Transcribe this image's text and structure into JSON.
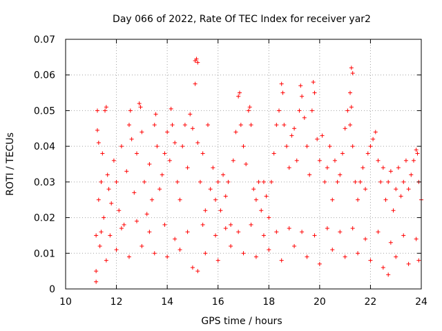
{
  "chart_data": {
    "type": "scatter",
    "title": "Day 066 of 2022, Rate Of TEC Index for receiver yar2",
    "xlabel": "GPS time / hours",
    "ylabel": "ROTI / TECUs",
    "xlim": [
      10,
      24
    ],
    "ylim": [
      0,
      0.07
    ],
    "grid": true,
    "marker": "plus",
    "series_color": "#ff0000",
    "x_ticks": [
      {
        "value": 10,
        "label": "10"
      },
      {
        "value": 12,
        "label": "12"
      },
      {
        "value": 14,
        "label": "14"
      },
      {
        "value": 16,
        "label": "16"
      },
      {
        "value": 18,
        "label": "18"
      },
      {
        "value": 20,
        "label": "20"
      },
      {
        "value": 22,
        "label": "22"
      },
      {
        "value": 24,
        "label": "24"
      }
    ],
    "y_ticks": [
      {
        "value": 0,
        "label": "0"
      },
      {
        "value": 0.01,
        "label": "0.01"
      },
      {
        "value": 0.02,
        "label": "0.02"
      },
      {
        "value": 0.03,
        "label": "0.03"
      },
      {
        "value": 0.04,
        "label": "0.04"
      },
      {
        "value": 0.05,
        "label": "0.05"
      },
      {
        "value": 0.06,
        "label": "0.06"
      },
      {
        "value": 0.07,
        "label": "0.07"
      }
    ],
    "points": [
      [
        11.2,
        0.002
      ],
      [
        11.2,
        0.005
      ],
      [
        11.2,
        0.015
      ],
      [
        11.25,
        0.0445
      ],
      [
        11.25,
        0.05
      ],
      [
        11.3,
        0.041
      ],
      [
        11.3,
        0.025
      ],
      [
        11.35,
        0.012
      ],
      [
        11.4,
        0.03
      ],
      [
        11.45,
        0.038
      ],
      [
        11.5,
        0.02
      ],
      [
        11.55,
        0.05
      ],
      [
        11.6,
        0.051
      ],
      [
        11.65,
        0.032
      ],
      [
        11.7,
        0.028
      ],
      [
        11.75,
        0.015
      ],
      [
        11.8,
        0.024
      ],
      [
        11.9,
        0.036
      ],
      [
        12.0,
        0.03
      ],
      [
        12.1,
        0.022
      ],
      [
        12.2,
        0.04
      ],
      [
        12.3,
        0.018
      ],
      [
        12.4,
        0.033
      ],
      [
        12.5,
        0.046
      ],
      [
        12.55,
        0.05
      ],
      [
        12.6,
        0.042
      ],
      [
        12.7,
        0.027
      ],
      [
        12.8,
        0.038
      ],
      [
        12.9,
        0.052
      ],
      [
        12.95,
        0.051
      ],
      [
        13.0,
        0.044
      ],
      [
        13.1,
        0.03
      ],
      [
        13.2,
        0.021
      ],
      [
        13.3,
        0.035
      ],
      [
        13.4,
        0.025
      ],
      [
        13.5,
        0.046
      ],
      [
        13.55,
        0.049
      ],
      [
        13.6,
        0.04
      ],
      [
        13.7,
        0.028
      ],
      [
        13.8,
        0.032
      ],
      [
        13.9,
        0.038
      ],
      [
        14.0,
        0.044
      ],
      [
        14.1,
        0.036
      ],
      [
        14.15,
        0.0505
      ],
      [
        14.2,
        0.046
      ],
      [
        14.3,
        0.041
      ],
      [
        14.4,
        0.03
      ],
      [
        14.5,
        0.025
      ],
      [
        14.6,
        0.04
      ],
      [
        14.7,
        0.046
      ],
      [
        14.8,
        0.034
      ],
      [
        14.9,
        0.049
      ],
      [
        15.0,
        0.045
      ],
      [
        15.1,
        0.064
      ],
      [
        15.15,
        0.0645
      ],
      [
        15.2,
        0.0635
      ],
      [
        15.1,
        0.0575
      ],
      [
        15.2,
        0.041
      ],
      [
        15.3,
        0.03
      ],
      [
        15.4,
        0.038
      ],
      [
        15.5,
        0.022
      ],
      [
        15.6,
        0.046
      ],
      [
        15.7,
        0.028
      ],
      [
        15.8,
        0.034
      ],
      [
        15.9,
        0.025
      ],
      [
        16.0,
        0.03
      ],
      [
        16.1,
        0.022
      ],
      [
        16.2,
        0.032
      ],
      [
        16.3,
        0.026
      ],
      [
        16.4,
        0.03
      ],
      [
        16.5,
        0.018
      ],
      [
        16.6,
        0.036
      ],
      [
        16.7,
        0.044
      ],
      [
        16.8,
        0.054
      ],
      [
        16.85,
        0.055
      ],
      [
        16.9,
        0.046
      ],
      [
        17.0,
        0.04
      ],
      [
        17.1,
        0.035
      ],
      [
        17.2,
        0.05
      ],
      [
        17.25,
        0.051
      ],
      [
        17.3,
        0.046
      ],
      [
        17.4,
        0.028
      ],
      [
        17.5,
        0.025
      ],
      [
        17.6,
        0.03
      ],
      [
        17.7,
        0.022
      ],
      [
        17.8,
        0.03
      ],
      [
        17.9,
        0.026
      ],
      [
        18.0,
        0.02
      ],
      [
        18.1,
        0.03
      ],
      [
        18.2,
        0.038
      ],
      [
        18.3,
        0.046
      ],
      [
        18.4,
        0.05
      ],
      [
        18.5,
        0.0575
      ],
      [
        18.55,
        0.055
      ],
      [
        18.6,
        0.046
      ],
      [
        18.7,
        0.04
      ],
      [
        18.8,
        0.034
      ],
      [
        18.9,
        0.043
      ],
      [
        19.0,
        0.045
      ],
      [
        19.1,
        0.036
      ],
      [
        19.2,
        0.05
      ],
      [
        19.25,
        0.057
      ],
      [
        19.3,
        0.054
      ],
      [
        19.4,
        0.048
      ],
      [
        19.5,
        0.04
      ],
      [
        19.6,
        0.032
      ],
      [
        19.7,
        0.05
      ],
      [
        19.75,
        0.058
      ],
      [
        19.8,
        0.055
      ],
      [
        19.9,
        0.042
      ],
      [
        20.0,
        0.036
      ],
      [
        20.1,
        0.043
      ],
      [
        20.2,
        0.03
      ],
      [
        20.3,
        0.034
      ],
      [
        20.4,
        0.04
      ],
      [
        20.5,
        0.025
      ],
      [
        20.6,
        0.036
      ],
      [
        20.7,
        0.03
      ],
      [
        20.8,
        0.032
      ],
      [
        20.9,
        0.038
      ],
      [
        21.0,
        0.045
      ],
      [
        21.1,
        0.05
      ],
      [
        21.2,
        0.055
      ],
      [
        21.25,
        0.062
      ],
      [
        21.3,
        0.0605
      ],
      [
        21.25,
        0.051
      ],
      [
        21.2,
        0.046
      ],
      [
        21.3,
        0.04
      ],
      [
        21.4,
        0.03
      ],
      [
        21.5,
        0.025
      ],
      [
        21.6,
        0.03
      ],
      [
        21.7,
        0.034
      ],
      [
        21.8,
        0.028
      ],
      [
        21.9,
        0.038
      ],
      [
        22.0,
        0.04
      ],
      [
        22.1,
        0.042
      ],
      [
        22.2,
        0.044
      ],
      [
        22.3,
        0.036
      ],
      [
        22.4,
        0.03
      ],
      [
        22.5,
        0.034
      ],
      [
        22.6,
        0.025
      ],
      [
        22.7,
        0.03
      ],
      [
        22.8,
        0.033
      ],
      [
        22.9,
        0.022
      ],
      [
        23.0,
        0.028
      ],
      [
        23.1,
        0.034
      ],
      [
        23.2,
        0.026
      ],
      [
        23.3,
        0.03
      ],
      [
        23.4,
        0.036
      ],
      [
        23.5,
        0.028
      ],
      [
        23.6,
        0.032
      ],
      [
        23.7,
        0.036
      ],
      [
        23.8,
        0.039
      ],
      [
        23.85,
        0.038
      ],
      [
        23.9,
        0.03
      ],
      [
        24.0,
        0.025
      ],
      [
        11.6,
        0.008
      ],
      [
        12.0,
        0.011
      ],
      [
        12.5,
        0.009
      ],
      [
        13.0,
        0.012
      ],
      [
        13.5,
        0.01
      ],
      [
        14.0,
        0.009
      ],
      [
        14.5,
        0.011
      ],
      [
        15.0,
        0.006
      ],
      [
        15.2,
        0.005
      ],
      [
        15.5,
        0.01
      ],
      [
        16.0,
        0.008
      ],
      [
        16.5,
        0.012
      ],
      [
        17.0,
        0.01
      ],
      [
        17.5,
        0.009
      ],
      [
        18.0,
        0.011
      ],
      [
        18.5,
        0.008
      ],
      [
        19.0,
        0.012
      ],
      [
        19.5,
        0.009
      ],
      [
        20.0,
        0.007
      ],
      [
        20.5,
        0.011
      ],
      [
        21.0,
        0.009
      ],
      [
        21.5,
        0.01
      ],
      [
        22.0,
        0.008
      ],
      [
        22.5,
        0.006
      ],
      [
        22.7,
        0.004
      ],
      [
        23.0,
        0.009
      ],
      [
        23.5,
        0.007
      ],
      [
        23.9,
        0.008
      ],
      [
        11.4,
        0.016
      ],
      [
        12.2,
        0.017
      ],
      [
        12.8,
        0.019
      ],
      [
        13.3,
        0.016
      ],
      [
        13.9,
        0.018
      ],
      [
        14.3,
        0.014
      ],
      [
        14.8,
        0.016
      ],
      [
        15.4,
        0.018
      ],
      [
        15.9,
        0.015
      ],
      [
        16.3,
        0.017
      ],
      [
        16.8,
        0.016
      ],
      [
        17.3,
        0.018
      ],
      [
        17.8,
        0.015
      ],
      [
        18.3,
        0.016
      ],
      [
        18.8,
        0.017
      ],
      [
        19.3,
        0.016
      ],
      [
        19.8,
        0.015
      ],
      [
        20.3,
        0.017
      ],
      [
        20.8,
        0.016
      ],
      [
        21.3,
        0.017
      ],
      [
        21.8,
        0.014
      ],
      [
        22.3,
        0.016
      ],
      [
        22.8,
        0.013
      ],
      [
        23.3,
        0.015
      ],
      [
        23.8,
        0.014
      ]
    ]
  }
}
